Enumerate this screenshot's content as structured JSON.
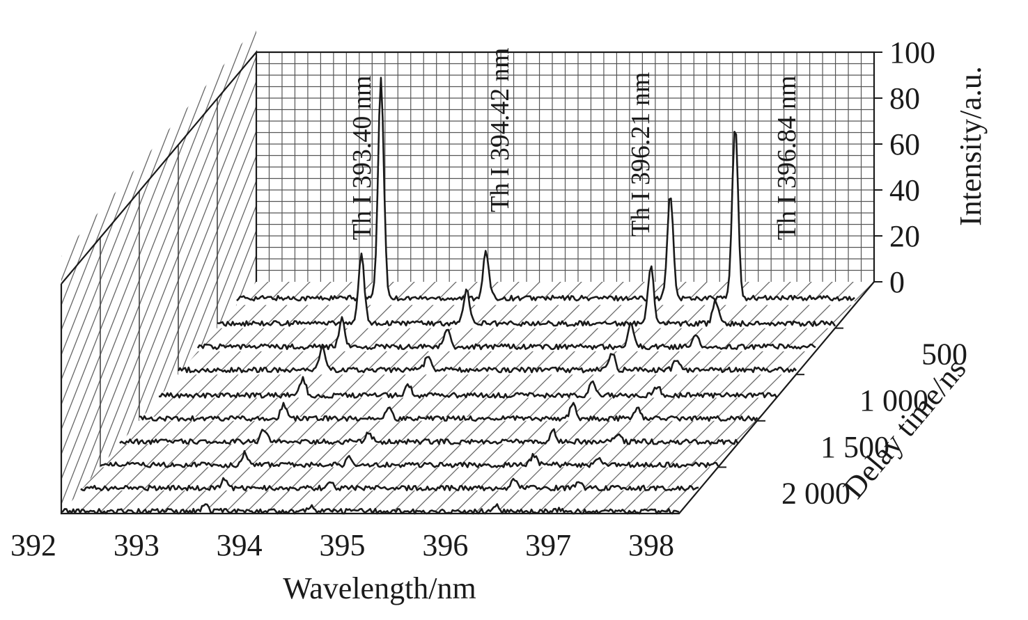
{
  "chart_data": {
    "type": "line",
    "chart_style": "3D waterfall of emission spectra",
    "xlabel": "Wavelength/nm",
    "ylabel": "Delay time/ns",
    "zlabel": "Intensity/a.u.",
    "xlim": [
      392,
      398
    ],
    "zlim": [
      0,
      100
    ],
    "x_ticks": [
      "392",
      "393",
      "394",
      "395",
      "396",
      "397",
      "398"
    ],
    "z_ticks": [
      "0",
      "20",
      "40",
      "60",
      "80",
      "100"
    ],
    "delay_ticks": [
      {
        "value": 500,
        "label": "500"
      },
      {
        "value": 1000,
        "label": "1 000"
      },
      {
        "value": 1500,
        "label": "1 500"
      },
      {
        "value": 2000,
        "label": "2 000"
      }
    ],
    "delay_range": [
      2500,
      0
    ],
    "grid": true,
    "floor_pattern": "diagonal hatch",
    "annotations": [
      {
        "text": "Th I 393.40 nm",
        "wavelength": 393.4
      },
      {
        "text": "Th I 394.42 nm",
        "wavelength": 394.42
      },
      {
        "text": "Th I 396.21 nm",
        "wavelength": 396.21
      },
      {
        "text": "Th I 396.84 nm",
        "wavelength": 396.84
      }
    ],
    "peak_wavelengths": [
      393.4,
      394.42,
      396.21,
      396.84
    ],
    "series": [
      {
        "delay": 250,
        "baseline": 3,
        "peak_intensities": [
          95,
          20,
          45,
          75
        ]
      },
      {
        "delay": 500,
        "baseline": 2,
        "peak_intensities": [
          30,
          15,
          25,
          10
        ]
      },
      {
        "delay": 750,
        "baseline": 2,
        "peak_intensities": [
          12,
          8,
          10,
          6
        ]
      },
      {
        "delay": 1000,
        "baseline": 2,
        "peak_intensities": [
          10,
          6,
          8,
          5
        ]
      },
      {
        "delay": 1250,
        "baseline": 1,
        "peak_intensities": [
          7,
          5,
          7,
          4
        ]
      },
      {
        "delay": 1500,
        "baseline": 1,
        "peak_intensities": [
          6,
          5,
          6,
          4
        ]
      },
      {
        "delay": 1750,
        "baseline": 1,
        "peak_intensities": [
          5,
          4,
          5,
          4
        ]
      },
      {
        "delay": 2000,
        "baseline": 1,
        "peak_intensities": [
          5,
          3,
          4,
          3
        ]
      },
      {
        "delay": 2250,
        "baseline": 1,
        "peak_intensities": [
          4,
          3,
          4,
          2
        ]
      },
      {
        "delay": 2500,
        "baseline": 1,
        "peak_intensities": [
          3,
          2,
          3,
          1
        ]
      }
    ]
  }
}
